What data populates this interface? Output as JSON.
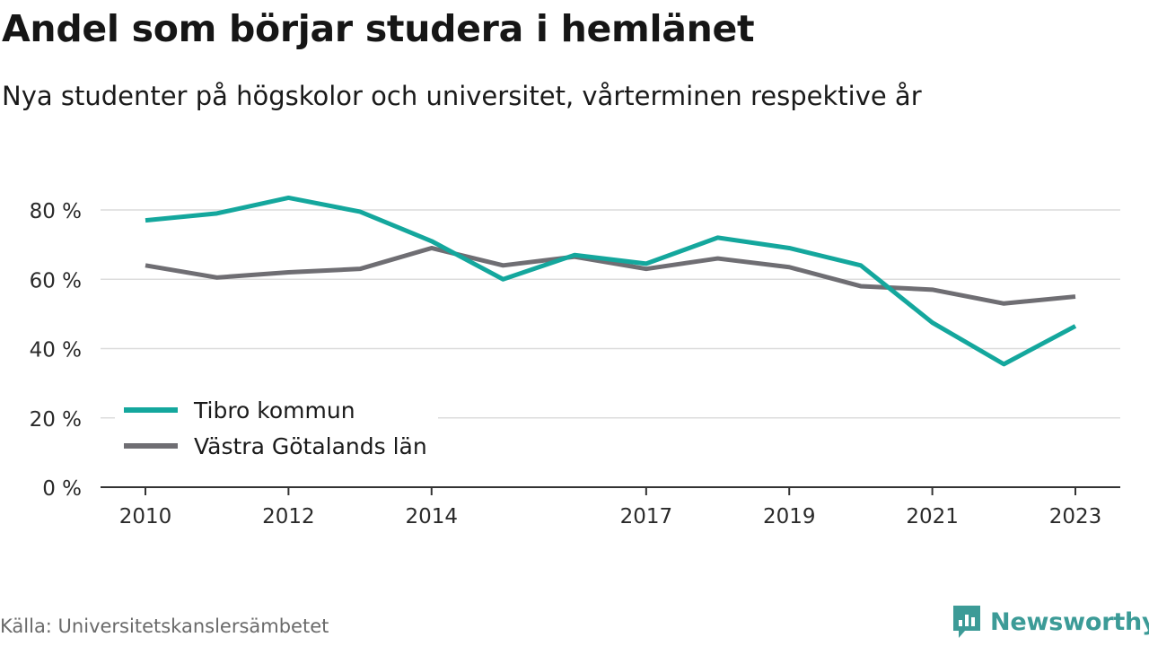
{
  "title": "Andel som börjar studera i hemlänet",
  "subtitle": "Nya studenter på högskolor och universitet, vårterminen respektive år",
  "source": "Källa: Universitetskanslersämbetet",
  "brand": {
    "name": "Newsworthy",
    "color": "#3c9b97"
  },
  "chart_data": {
    "type": "line",
    "title": "Andel som börjar studera i hemlänet",
    "subtitle": "Nya studenter på högskolor och universitet, vårterminen respektive år",
    "xlabel": "",
    "ylabel": "",
    "x": [
      2010,
      2011,
      2012,
      2013,
      2014,
      2015,
      2016,
      2017,
      2018,
      2019,
      2020,
      2021,
      2022,
      2023
    ],
    "x_ticks": [
      2010,
      2012,
      2014,
      2017,
      2019,
      2021,
      2023
    ],
    "y_ticks": [
      0,
      20,
      40,
      60,
      80
    ],
    "y_tick_suffix": " %",
    "ylim": [
      0,
      80
    ],
    "grid": true,
    "legend_position": "bottom-left",
    "series": [
      {
        "name": "Tibro kommun",
        "color": "#14a79d",
        "values": [
          77,
          79,
          83.5,
          79.5,
          71,
          60,
          67,
          64.5,
          72,
          69,
          64,
          47.5,
          35.5,
          46.5
        ]
      },
      {
        "name": "Västra Götalands län",
        "color": "#6f6e73",
        "values": [
          64,
          60.5,
          62,
          63,
          69,
          64,
          66.5,
          63,
          66,
          63.5,
          58,
          57,
          53,
          55
        ]
      }
    ]
  }
}
